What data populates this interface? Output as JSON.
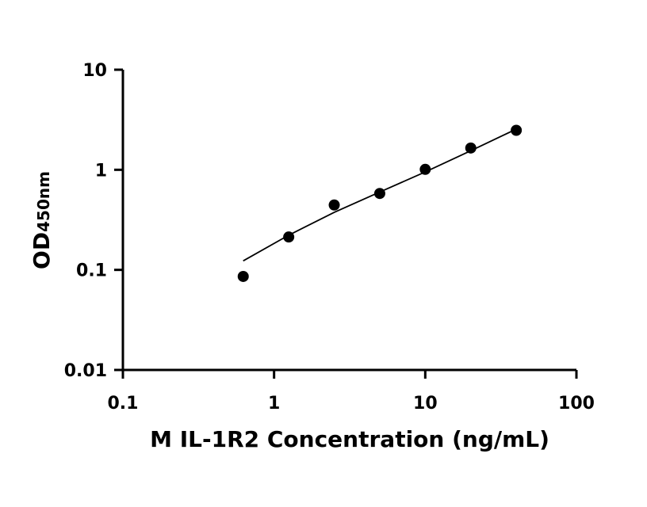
{
  "chart_data": {
    "type": "scatter",
    "xlabel": "M IL-1R2 Concentration (ng/mL)",
    "ylabel": {
      "main": "OD",
      "subscript": "450nm"
    },
    "x_scale": "log",
    "y_scale": "log",
    "xlim": [
      0.1,
      100
    ],
    "ylim": [
      0.01,
      10
    ],
    "x_ticks": [
      {
        "value": 0.1,
        "label": "0.1"
      },
      {
        "value": 1,
        "label": "1"
      },
      {
        "value": 10,
        "label": "10"
      },
      {
        "value": 100,
        "label": "100"
      }
    ],
    "y_ticks": [
      {
        "value": 0.01,
        "label": "0.01"
      },
      {
        "value": 0.1,
        "label": "0.1"
      },
      {
        "value": 1,
        "label": "1"
      },
      {
        "value": 10,
        "label": "10"
      }
    ],
    "grid": false,
    "series": [
      {
        "points": [
          {
            "x": 0.625,
            "y": 0.086
          },
          {
            "x": 1.25,
            "y": 0.213
          },
          {
            "x": 2.5,
            "y": 0.445
          },
          {
            "x": 5,
            "y": 0.58
          },
          {
            "x": 10,
            "y": 1.01
          },
          {
            "x": 20,
            "y": 1.65
          },
          {
            "x": 40,
            "y": 2.48
          }
        ],
        "fit_curve": [
          {
            "x": 0.625,
            "y": 0.123
          },
          {
            "x": 1.25,
            "y": 0.222
          },
          {
            "x": 2.5,
            "y": 0.375
          },
          {
            "x": 5,
            "y": 0.6
          },
          {
            "x": 10,
            "y": 0.95
          },
          {
            "x": 20,
            "y": 1.55
          },
          {
            "x": 40,
            "y": 2.55
          }
        ],
        "color": "#000000"
      }
    ]
  }
}
